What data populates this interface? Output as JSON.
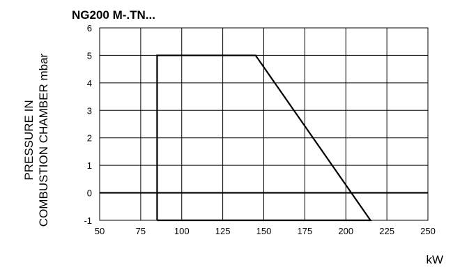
{
  "chart_data": {
    "type": "line",
    "title": "NG200 M-.TN...",
    "xlabel": "kW",
    "ylabel_lines": [
      "PRESSURE IN",
      "COMBUSTION CHAMBER mbar"
    ],
    "xlim": [
      50,
      250
    ],
    "ylim": [
      -1,
      6
    ],
    "x_ticks": [
      50,
      75,
      100,
      125,
      150,
      175,
      200,
      225,
      250
    ],
    "y_ticks": [
      -1,
      0,
      1,
      2,
      3,
      4,
      5,
      6
    ],
    "grid": true,
    "reference_line": {
      "y": 0
    },
    "series": [
      {
        "x": [
          85,
          85,
          145,
          215,
          85
        ],
        "y": [
          -1,
          5,
          5,
          -1,
          -1
        ]
      }
    ]
  }
}
